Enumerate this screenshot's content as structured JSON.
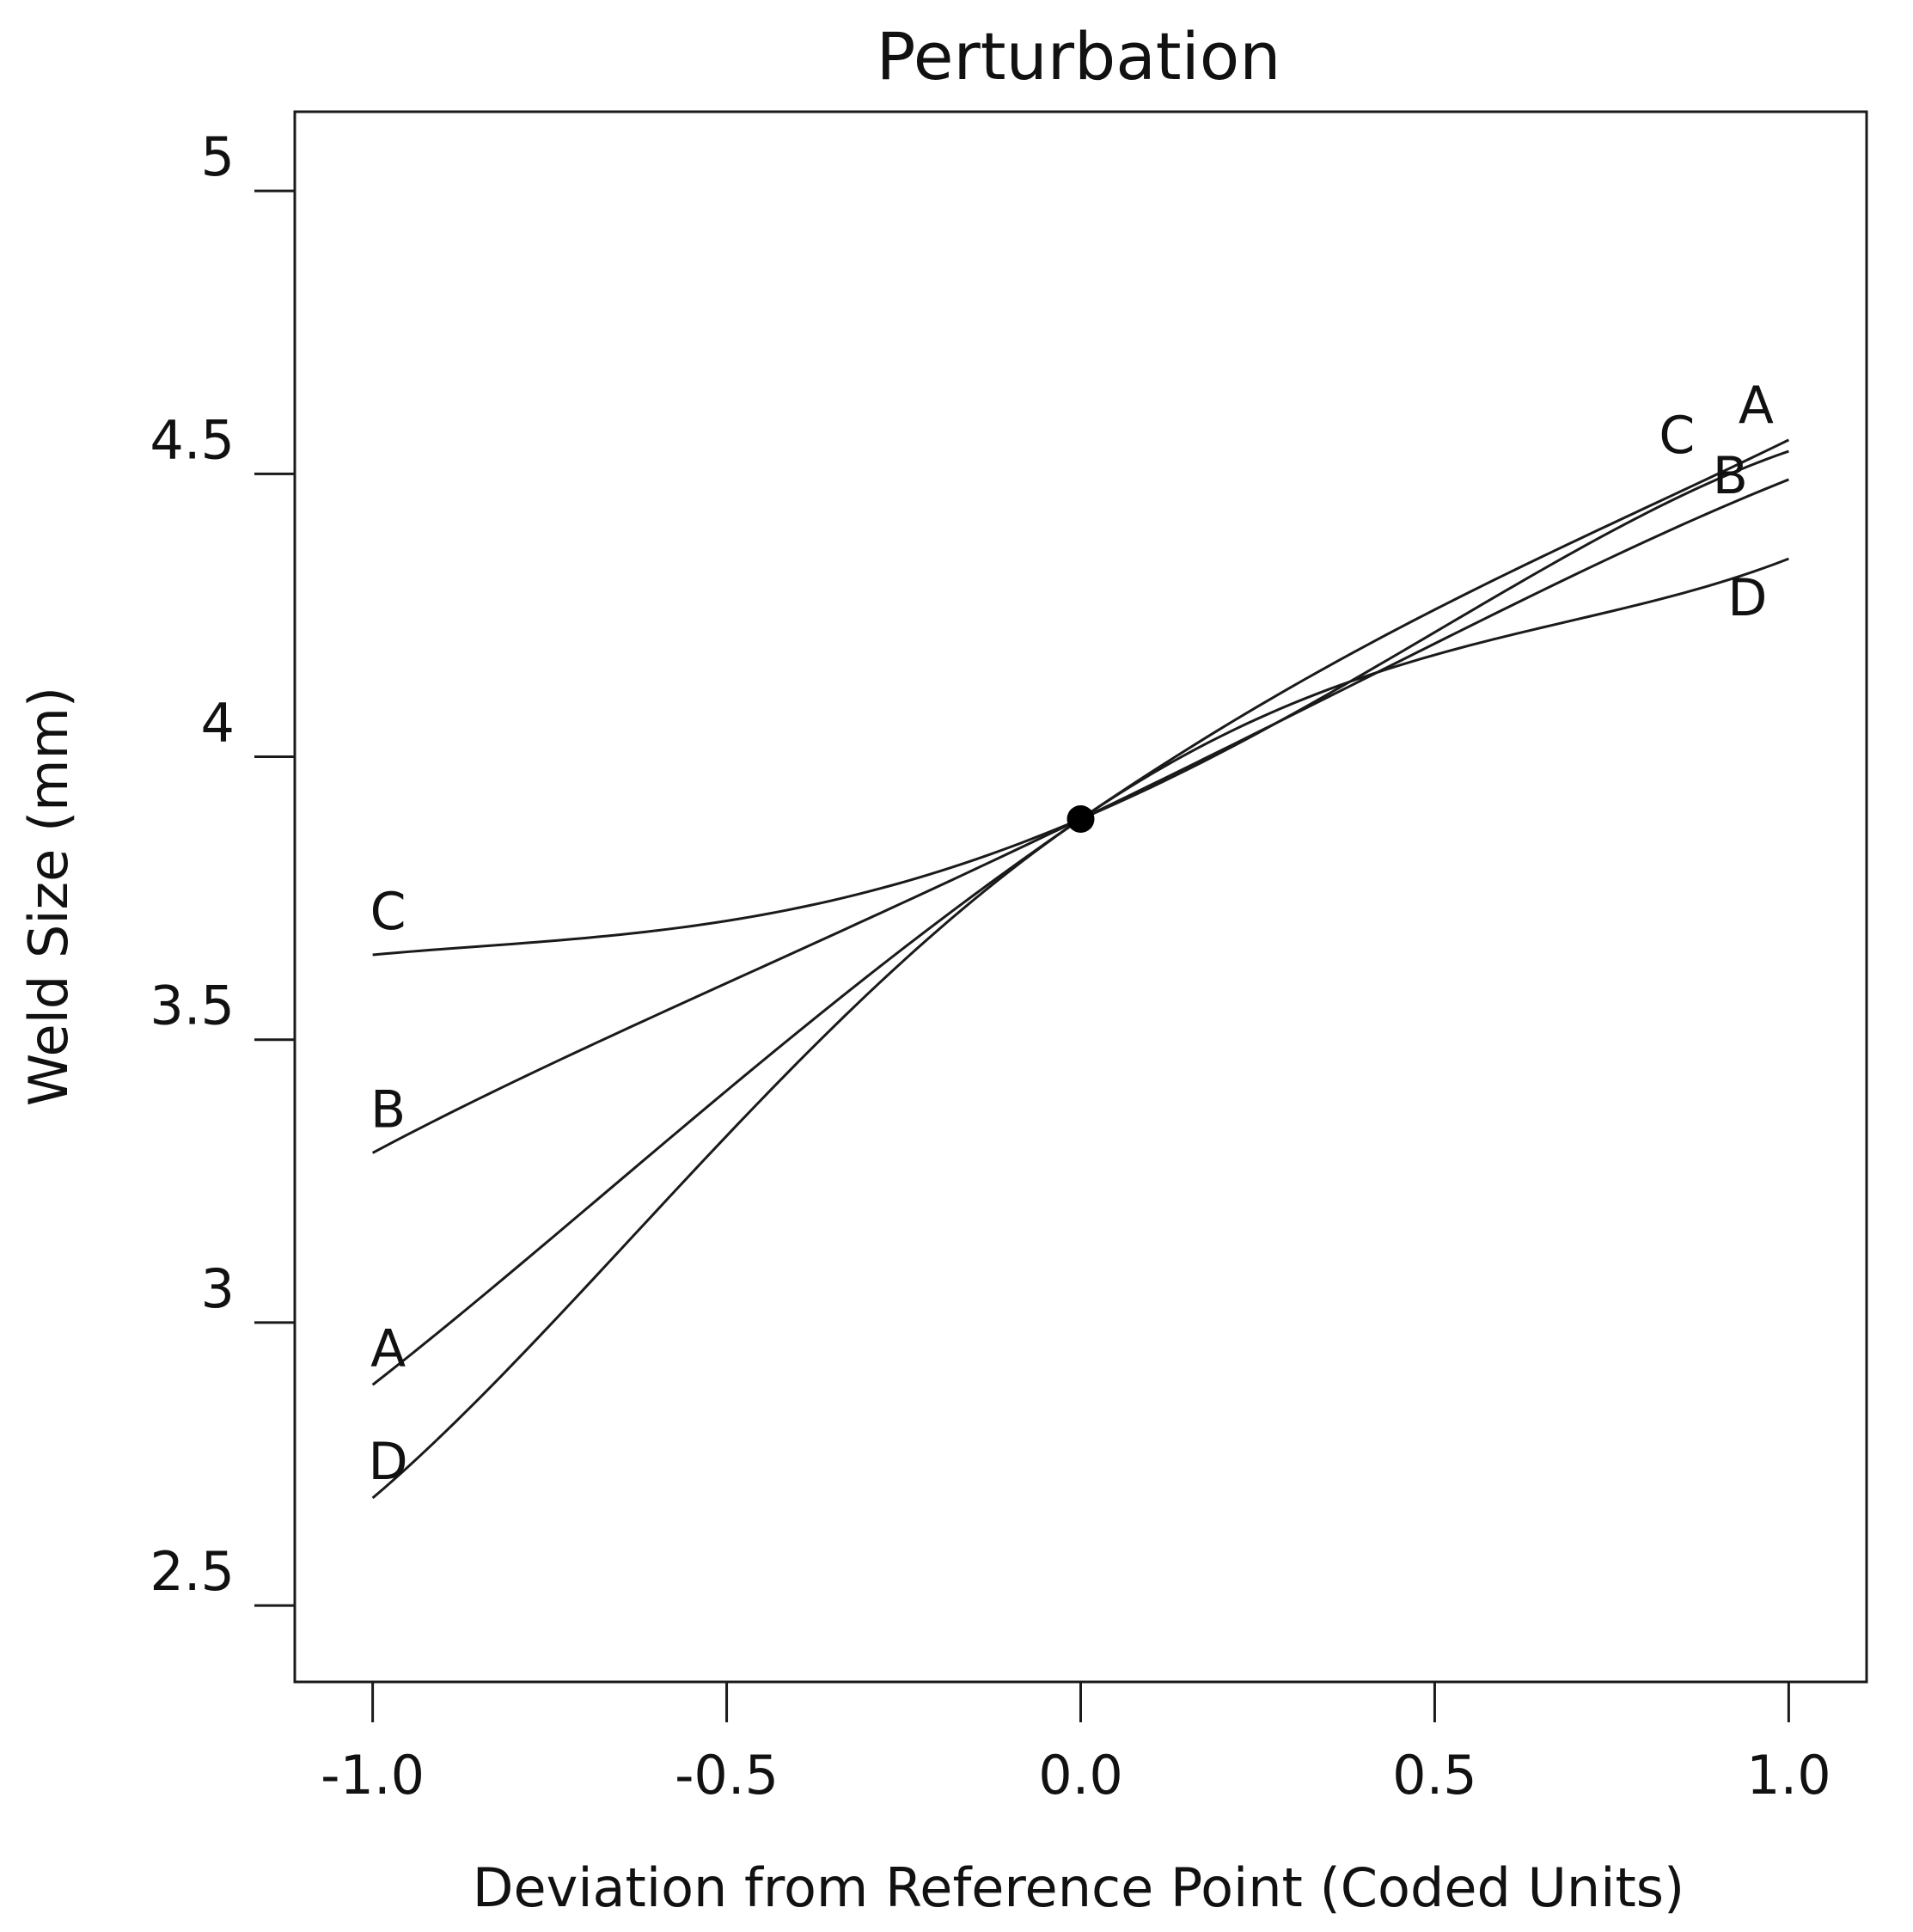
{
  "chart_data": {
    "type": "line",
    "title": "Perturbation",
    "xlabel": "Deviation from Reference Point (Coded Units)",
    "ylabel": "Weld Size (mm)",
    "xlim": [
      -1.11,
      1.11
    ],
    "ylim": [
      2.365,
      5.14
    ],
    "xticks": [
      -1.0,
      -0.5,
      0.0,
      0.5,
      1.0
    ],
    "xtick_labels": [
      "-1.0",
      "-0.5",
      "0.0",
      "0.5",
      "1.0"
    ],
    "yticks": [
      2.5,
      3.0,
      3.5,
      4.0,
      4.5,
      5.0
    ],
    "ytick_labels": [
      "2.5",
      "3",
      "3.5",
      "4",
      "4.5",
      "5"
    ],
    "grid": false,
    "legend": "none",
    "reference_point": {
      "x": 0.0,
      "y": 3.89
    },
    "series": [
      {
        "name": "A",
        "x": [
          -1.0,
          -0.5,
          0.0,
          0.5,
          1.0
        ],
        "y": [
          2.89,
          3.41,
          3.89,
          4.26,
          4.56
        ]
      },
      {
        "name": "B",
        "x": [
          -1.0,
          -0.5,
          0.0,
          0.5,
          1.0
        ],
        "y": [
          3.3,
          3.6,
          3.89,
          4.2,
          4.49
        ]
      },
      {
        "name": "C",
        "x": [
          -1.0,
          -0.5,
          0.0,
          0.5,
          1.0
        ],
        "y": [
          3.65,
          3.71,
          3.89,
          4.22,
          4.54
        ]
      },
      {
        "name": "D",
        "x": [
          -1.0,
          -0.5,
          0.0,
          0.5,
          1.0
        ],
        "y": [
          2.69,
          3.33,
          3.89,
          4.18,
          4.35
        ]
      }
    ]
  }
}
